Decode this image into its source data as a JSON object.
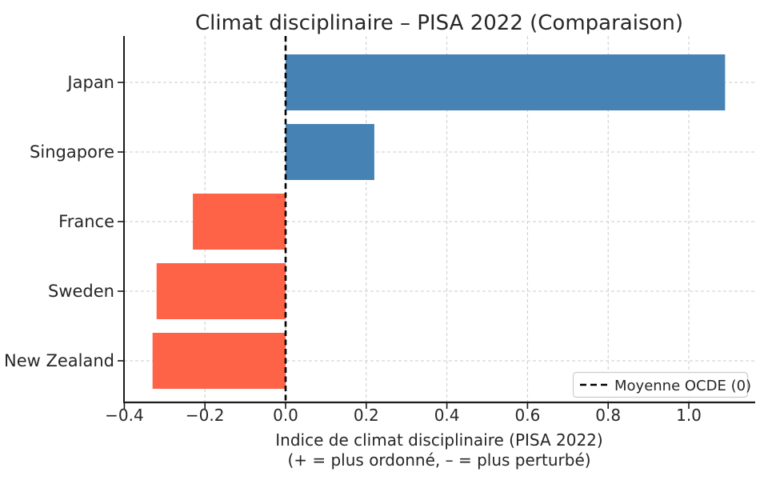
{
  "chart_data": {
    "type": "bar",
    "orientation": "horizontal",
    "title": "Climat disciplinaire – PISA 2022 (Comparaison)",
    "categories": [
      "Japan",
      "Singapore",
      "France",
      "Sweden",
      "New Zealand"
    ],
    "values": [
      1.09,
      0.22,
      -0.23,
      -0.32,
      -0.33
    ],
    "xlabel_line1": "Indice de climat disciplinaire (PISA 2022)",
    "xlabel_line2": "(+ = plus ordonné, – = plus perturbé)",
    "xticks": [
      -0.4,
      -0.2,
      0.0,
      0.2,
      0.4,
      0.6,
      0.8,
      1.0
    ],
    "xtick_labels": [
      "−0.4",
      "−0.2",
      "0.0",
      "0.2",
      "0.4",
      "0.6",
      "0.8",
      "1.0"
    ],
    "xlim": [
      -0.4,
      1.16
    ],
    "grid": true,
    "grid_style": "dashed",
    "legend_position": "lower right",
    "reference_line": {
      "value": 0,
      "label": "Moyenne OCDE (0)",
      "style": "dashed",
      "color": "#000000"
    }
  },
  "colors": {
    "positive_bar": "#4682B4",
    "negative_bar": "#FF6347",
    "grid": "#cbcbcb",
    "axis": "#1a1a1a",
    "text": "#262626",
    "reference_line": "#000000",
    "legend_border": "#cccccc",
    "background": "#ffffff"
  }
}
